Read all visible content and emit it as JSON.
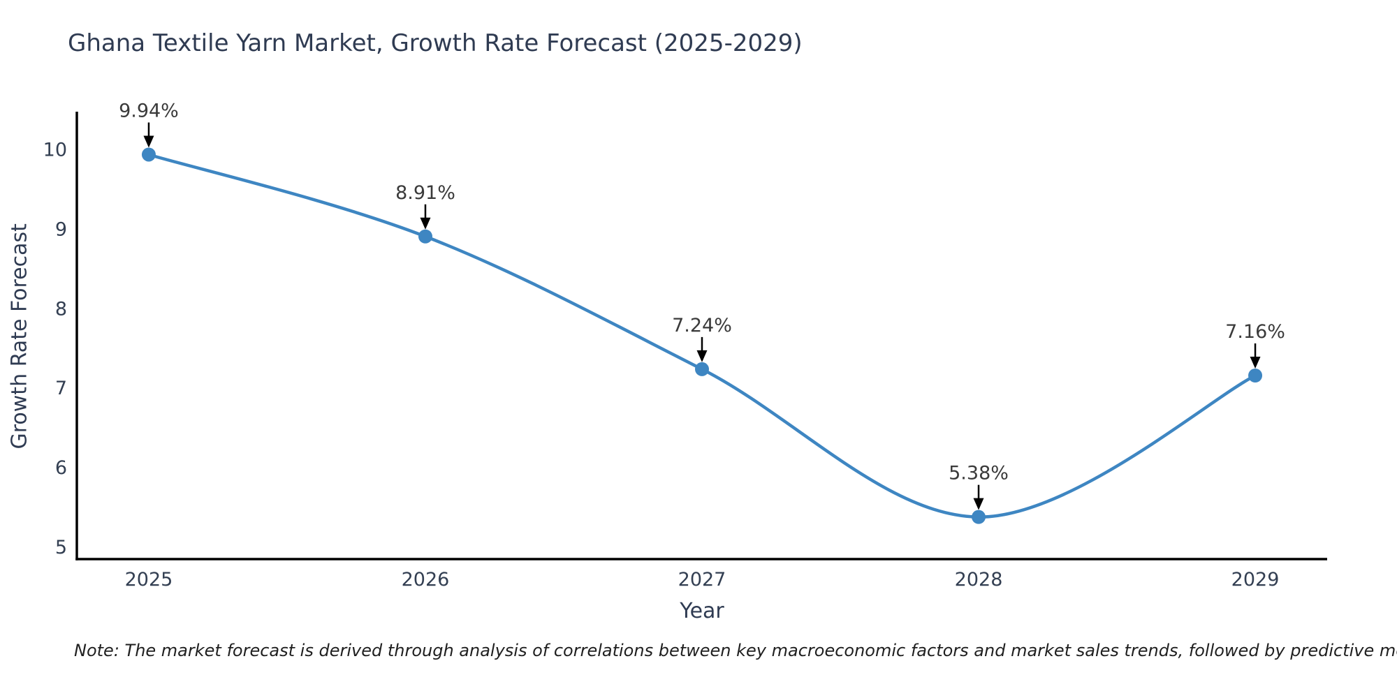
{
  "page": {
    "background_color": "#ffffff"
  },
  "chart_data": {
    "type": "line",
    "title": "Ghana Textile Yarn Market, Growth Rate Forecast (2025-2029)",
    "xlabel": "Year",
    "ylabel": "Growth Rate Forecast",
    "x": [
      2025,
      2026,
      2027,
      2028,
      2029
    ],
    "series": [
      {
        "name": "Growth Rate Forecast",
        "values": [
          9.94,
          8.91,
          7.24,
          5.38,
          7.16
        ]
      }
    ],
    "point_labels": [
      "9.94%",
      "8.91%",
      "7.24%",
      "5.38%",
      "7.16%"
    ],
    "xtick_labels": [
      "2025",
      "2026",
      "2027",
      "2028",
      "2029"
    ],
    "ytick_values": [
      5,
      6,
      7,
      8,
      9,
      10
    ],
    "xlim": [
      2024.74,
      2029.26
    ],
    "ylim": [
      4.85,
      10.48
    ],
    "grid": false,
    "legend_position": "none",
    "curve_style": "smooth-spline",
    "colors": {
      "line": "#3e86c2",
      "marker": "#3e86c2",
      "axis": "#000000",
      "tick_label": "#333f52",
      "title": "#2f3b52",
      "annotation_text": "#3a3a3a",
      "annotation_arrow": "#000000"
    },
    "note": "Note: The market forecast is derived through analysis of correlations between key macroeconomic factors and market sales trends, followed by predictive modeling to project future sales"
  }
}
